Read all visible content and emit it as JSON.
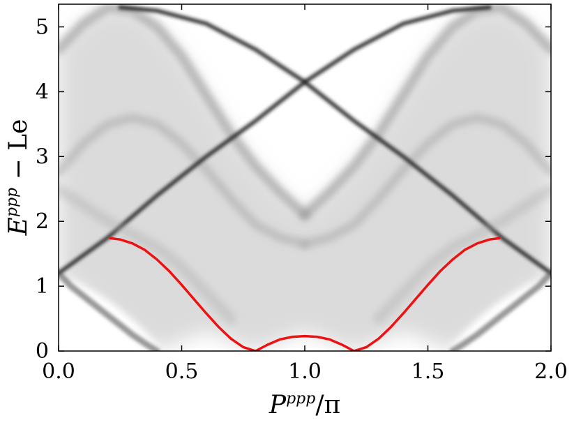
{
  "chart_data": {
    "type": "heatmap",
    "title": "",
    "xlabel": {
      "main": "P",
      "sup": "ppp",
      "rest": "/π"
    },
    "ylabel": {
      "main": "E",
      "sup": "ppp",
      "rest": " − Le"
    },
    "xlim": [
      0.0,
      2.0
    ],
    "ylim": [
      0.0,
      5.35
    ],
    "xticks": [
      "0.0",
      "0.5",
      "1.0",
      "1.5",
      "2.0"
    ],
    "xtick_values": [
      0.0,
      0.5,
      1.0,
      1.5,
      2.0
    ],
    "yticks": [
      "0",
      "1",
      "2",
      "3",
      "4",
      "5"
    ],
    "ytick_values": [
      0,
      1,
      2,
      3,
      4,
      5
    ],
    "grid": false,
    "legend": "none",
    "colormap": "greys",
    "colors": {
      "curve": "#ee1111",
      "frame": "#000000",
      "background": "#ffffff"
    },
    "bands": [
      {
        "name": "upper arc left",
        "x": [
          0.0,
          0.1,
          0.2,
          0.3,
          0.4,
          0.5,
          0.6,
          0.7,
          0.8,
          0.9,
          1.0
        ],
        "y": [
          4.65,
          5.05,
          5.3,
          5.25,
          5.0,
          4.55,
          3.95,
          3.35,
          2.85,
          2.45,
          2.1
        ]
      },
      {
        "name": "upper arc right",
        "x": [
          1.0,
          1.1,
          1.2,
          1.3,
          1.4,
          1.5,
          1.6,
          1.7,
          1.8,
          1.9,
          2.0
        ],
        "y": [
          2.1,
          2.45,
          2.85,
          3.35,
          3.95,
          4.55,
          5.0,
          5.25,
          5.3,
          5.05,
          4.65
        ]
      },
      {
        "name": "lower arc left",
        "x": [
          0.0,
          0.1,
          0.2,
          0.3,
          0.4,
          0.5,
          0.6,
          0.7,
          0.8,
          0.9,
          1.0
        ],
        "y": [
          2.75,
          3.2,
          3.5,
          3.6,
          3.5,
          3.2,
          2.8,
          2.35,
          1.95,
          1.75,
          1.65
        ]
      },
      {
        "name": "lower arc right",
        "x": [
          1.0,
          1.1,
          1.2,
          1.3,
          1.4,
          1.5,
          1.6,
          1.7,
          1.8,
          1.9,
          2.0
        ],
        "y": [
          1.65,
          1.75,
          1.95,
          2.35,
          2.8,
          3.2,
          3.5,
          3.6,
          3.5,
          3.2,
          2.75
        ]
      },
      {
        "name": "dark diagonal rising",
        "x": [
          0.0,
          0.2,
          0.4,
          0.6,
          0.8,
          1.0,
          1.2,
          1.4,
          1.6,
          1.75
        ],
        "y": [
          1.2,
          1.75,
          2.4,
          3.0,
          3.55,
          4.15,
          4.65,
          5.05,
          5.25,
          5.3
        ]
      },
      {
        "name": "dark diagonal falling",
        "x": [
          0.25,
          0.4,
          0.6,
          0.8,
          1.0,
          1.2,
          1.4,
          1.6,
          1.8,
          2.0
        ],
        "y": [
          5.3,
          5.25,
          5.05,
          4.65,
          4.15,
          3.55,
          3.0,
          2.4,
          1.75,
          1.2
        ]
      },
      {
        "name": "lower left branch",
        "x": [
          0.0,
          0.05,
          0.1,
          0.15,
          0.2,
          0.25,
          0.3,
          0.35,
          0.4
        ],
        "y": [
          1.2,
          1.0,
          0.85,
          0.7,
          0.55,
          0.4,
          0.25,
          0.12,
          0.0
        ]
      },
      {
        "name": "lower right branch",
        "x": [
          1.6,
          1.65,
          1.7,
          1.75,
          1.8,
          1.85,
          1.9,
          1.95,
          2.0
        ],
        "y": [
          0.0,
          0.12,
          0.25,
          0.4,
          0.55,
          0.7,
          0.85,
          1.0,
          1.2
        ]
      },
      {
        "name": "lower left shadow",
        "x": [
          0.0,
          0.1,
          0.2,
          0.3,
          0.4,
          0.5,
          0.6,
          0.7
        ],
        "y": [
          2.5,
          2.25,
          2.0,
          1.8,
          1.6,
          1.3,
          0.9,
          0.5
        ]
      },
      {
        "name": "lower right shadow",
        "x": [
          1.3,
          1.4,
          1.5,
          1.6,
          1.7,
          1.8,
          1.9,
          2.0
        ],
        "y": [
          0.5,
          0.9,
          1.3,
          1.6,
          1.8,
          2.0,
          2.25,
          2.5
        ]
      }
    ],
    "series": [
      {
        "x": [
          0.21,
          0.25,
          0.3,
          0.35,
          0.4,
          0.45,
          0.5,
          0.55,
          0.6,
          0.65,
          0.7,
          0.75,
          0.8,
          0.85,
          0.9,
          0.95,
          1.0,
          1.05,
          1.1,
          1.15,
          1.2,
          1.25,
          1.3,
          1.35,
          1.4,
          1.45,
          1.5,
          1.55,
          1.6,
          1.65,
          1.7,
          1.75,
          1.79
        ],
        "y": [
          1.74,
          1.72,
          1.66,
          1.56,
          1.41,
          1.23,
          1.02,
          0.8,
          0.58,
          0.37,
          0.19,
          0.06,
          0.0,
          0.1,
          0.18,
          0.22,
          0.23,
          0.22,
          0.18,
          0.1,
          0.0,
          0.06,
          0.19,
          0.37,
          0.58,
          0.8,
          1.02,
          1.23,
          1.41,
          1.56,
          1.66,
          1.72,
          1.74
        ]
      }
    ]
  }
}
